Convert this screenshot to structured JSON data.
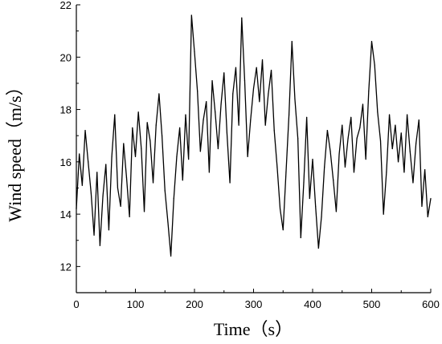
{
  "chart_data": {
    "type": "line",
    "xlabel": "Time（s）",
    "ylabel": "Wind speed（m/s）",
    "xlim": [
      0,
      600
    ],
    "ylim": [
      11,
      22
    ],
    "xticks": [
      0,
      100,
      200,
      300,
      400,
      500,
      600
    ],
    "yticks": [
      12,
      14,
      16,
      18,
      20,
      22
    ],
    "grid": false,
    "line_color": "#000000",
    "series": [
      {
        "x": [
          0,
          5,
          10,
          15,
          20,
          25,
          30,
          35,
          40,
          45,
          50,
          55,
          60,
          65,
          70,
          75,
          80,
          85,
          90,
          95,
          100,
          105,
          110,
          115,
          120,
          125,
          130,
          135,
          140,
          145,
          150,
          155,
          160,
          165,
          170,
          175,
          180,
          185,
          190,
          195,
          200,
          205,
          210,
          215,
          220,
          225,
          230,
          235,
          240,
          245,
          250,
          255,
          260,
          265,
          270,
          275,
          280,
          285,
          290,
          295,
          300,
          305,
          310,
          315,
          320,
          325,
          330,
          335,
          340,
          345,
          350,
          355,
          360,
          365,
          370,
          375,
          380,
          385,
          390,
          395,
          400,
          405,
          410,
          415,
          420,
          425,
          430,
          435,
          440,
          445,
          450,
          455,
          460,
          465,
          470,
          475,
          480,
          485,
          490,
          495,
          500,
          505,
          510,
          515,
          520,
          525,
          530,
          535,
          540,
          545,
          550,
          555,
          560,
          565,
          570,
          575,
          580,
          585,
          590,
          595,
          600
        ],
        "values": [
          14.2,
          16.3,
          15.1,
          17.2,
          16.0,
          14.8,
          13.2,
          15.6,
          12.8,
          14.7,
          15.9,
          13.4,
          16.2,
          17.8,
          15.0,
          14.3,
          16.7,
          15.4,
          13.9,
          17.3,
          16.2,
          17.9,
          16.5,
          14.1,
          17.5,
          16.8,
          15.2,
          17.4,
          18.6,
          17.0,
          14.9,
          13.7,
          12.4,
          14.6,
          16.2,
          17.3,
          15.3,
          17.8,
          16.1,
          21.6,
          20.2,
          18.7,
          16.4,
          17.6,
          18.3,
          15.6,
          19.1,
          17.9,
          16.5,
          18.2,
          19.4,
          17.1,
          15.2,
          18.6,
          19.6,
          17.4,
          21.5,
          19.1,
          16.2,
          17.6,
          18.8,
          19.6,
          18.3,
          19.9,
          17.4,
          18.6,
          19.5,
          17.2,
          15.8,
          14.2,
          13.4,
          15.6,
          17.8,
          20.6,
          18.4,
          16.9,
          13.1,
          15.2,
          17.7,
          14.6,
          16.1,
          14.3,
          12.7,
          13.9,
          15.8,
          17.2,
          16.4,
          15.3,
          14.1,
          16.3,
          17.4,
          15.8,
          16.9,
          17.7,
          15.6,
          16.9,
          17.3,
          18.2,
          16.1,
          18.7,
          20.6,
          19.7,
          17.9,
          16.8,
          14.0,
          15.6,
          17.8,
          16.5,
          17.4,
          16.0,
          17.1,
          15.6,
          17.8,
          16.4,
          15.2,
          16.7,
          17.6,
          14.3,
          15.7,
          13.9,
          14.6
        ]
      }
    ]
  }
}
